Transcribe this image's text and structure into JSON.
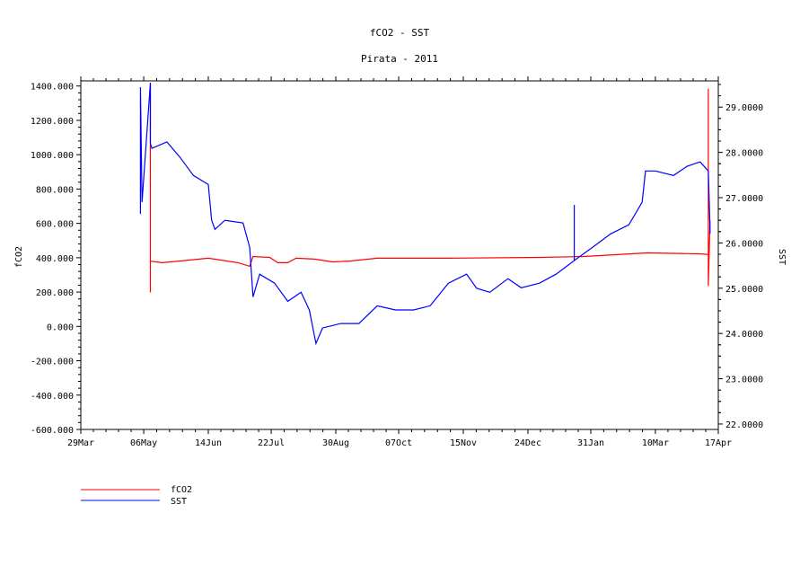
{
  "chart_data": {
    "type": "line",
    "title": "fCO2 - SST",
    "subtitle": "Pirata - 2011",
    "ylabel_left": "fCO2",
    "ylabel_right": "SST",
    "xlim": [
      "2011-03-29",
      "2012-04-17"
    ],
    "ylim_left": [
      -600,
      1430
    ],
    "ylim_right": [
      21.88,
      29.58
    ],
    "left_ticks": [
      "-600.000",
      "-400.000",
      "-200.000",
      "0.000",
      "200.000",
      "400.000",
      "600.000",
      "800.000",
      "1000.000",
      "1200.000",
      "1400.000"
    ],
    "left_tick_values": [
      -600,
      -400,
      -200,
      0,
      200,
      400,
      600,
      800,
      1000,
      1200,
      1400
    ],
    "right_ticks": [
      "22.0000",
      "23.0000",
      "24.0000",
      "25.0000",
      "26.0000",
      "27.0000",
      "28.0000",
      "29.0000"
    ],
    "right_tick_values": [
      22,
      23,
      24,
      25,
      26,
      27,
      28,
      29
    ],
    "x_ticks": [
      "29Mar",
      "06May",
      "14Jun",
      "22Jul",
      "30Aug",
      "07Oct",
      "15Nov",
      "24Dec",
      "31Jan",
      "10Mar",
      "17Apr"
    ],
    "x_tick_dates": [
      "2011-03-29",
      "2011-05-06",
      "2011-06-14",
      "2011-07-22",
      "2011-08-30",
      "2011-10-07",
      "2011-11-15",
      "2011-12-24",
      "2012-01-31",
      "2012-03-10",
      "2012-04-17"
    ],
    "grid": false,
    "legend_position": "bottom-left",
    "series": [
      {
        "name": "fCO2",
        "axis": "left",
        "color": "#ff0000",
        "points": [
          [
            "2011-05-10",
            1400
          ],
          [
            "2011-05-10",
            198
          ],
          [
            "2011-05-10",
            380
          ],
          [
            "2011-05-17",
            371
          ],
          [
            "2011-05-28",
            381
          ],
          [
            "2011-06-14",
            397
          ],
          [
            "2011-07-02",
            371
          ],
          [
            "2011-07-09",
            350
          ],
          [
            "2011-07-11",
            407
          ],
          [
            "2011-07-21",
            402
          ],
          [
            "2011-07-26",
            371
          ],
          [
            "2011-08-01",
            371
          ],
          [
            "2011-08-06",
            397
          ],
          [
            "2011-08-17",
            392
          ],
          [
            "2011-08-28",
            376
          ],
          [
            "2011-09-08",
            381
          ],
          [
            "2011-09-24",
            397
          ],
          [
            "2011-11-06",
            397
          ],
          [
            "2011-12-31",
            402
          ],
          [
            "2012-01-27",
            407
          ],
          [
            "2012-03-05",
            428
          ],
          [
            "2012-04-06",
            423
          ],
          [
            "2012-04-11",
            418
          ],
          [
            "2012-04-11",
            1384
          ],
          [
            "2012-04-11",
            235
          ],
          [
            "2012-04-12",
            616
          ]
        ]
      },
      {
        "name": "SST",
        "axis": "right",
        "color": "#0000ff",
        "points": [
          [
            "2011-05-04",
            26.64
          ],
          [
            "2011-05-04",
            29.44
          ],
          [
            "2011-05-05",
            26.9
          ],
          [
            "2011-05-10",
            29.54
          ],
          [
            "2011-05-10",
            28.19
          ],
          [
            "2011-05-11",
            28.09
          ],
          [
            "2011-05-20",
            28.23
          ],
          [
            "2011-05-28",
            27.89
          ],
          [
            "2011-06-05",
            27.49
          ],
          [
            "2011-06-14",
            27.29
          ],
          [
            "2011-06-16",
            26.5
          ],
          [
            "2011-06-18",
            26.3
          ],
          [
            "2011-06-24",
            26.5
          ],
          [
            "2011-07-05",
            26.44
          ],
          [
            "2011-07-09",
            25.9
          ],
          [
            "2011-07-11",
            24.81
          ],
          [
            "2011-07-15",
            25.31
          ],
          [
            "2011-07-24",
            25.11
          ],
          [
            "2011-08-01",
            24.71
          ],
          [
            "2011-08-09",
            24.91
          ],
          [
            "2011-08-14",
            24.52
          ],
          [
            "2011-08-18",
            23.78
          ],
          [
            "2011-08-22",
            24.12
          ],
          [
            "2011-09-02",
            24.22
          ],
          [
            "2011-09-13",
            24.22
          ],
          [
            "2011-09-24",
            24.61
          ],
          [
            "2011-10-05",
            24.52
          ],
          [
            "2011-10-16",
            24.52
          ],
          [
            "2011-10-26",
            24.61
          ],
          [
            "2011-11-06",
            25.11
          ],
          [
            "2011-11-17",
            25.31
          ],
          [
            "2011-11-23",
            25.0
          ],
          [
            "2011-12-01",
            24.91
          ],
          [
            "2011-12-12",
            25.21
          ],
          [
            "2011-12-20",
            25.01
          ],
          [
            "2011-12-31",
            25.11
          ],
          [
            "2012-01-10",
            25.31
          ],
          [
            "2012-01-21",
            25.61
          ],
          [
            "2012-01-21",
            26.84
          ],
          [
            "2012-01-21",
            25.61
          ],
          [
            "2012-02-01",
            25.9
          ],
          [
            "2012-02-12",
            26.2
          ],
          [
            "2012-02-23",
            26.4
          ],
          [
            "2012-03-02",
            26.9
          ],
          [
            "2012-03-04",
            27.59
          ],
          [
            "2012-03-10",
            27.59
          ],
          [
            "2012-03-21",
            27.49
          ],
          [
            "2012-03-29",
            27.69
          ],
          [
            "2012-04-06",
            27.79
          ],
          [
            "2012-04-11",
            27.59
          ],
          [
            "2012-04-12",
            26.3
          ],
          [
            "2012-04-12",
            26.2
          ]
        ]
      }
    ]
  }
}
